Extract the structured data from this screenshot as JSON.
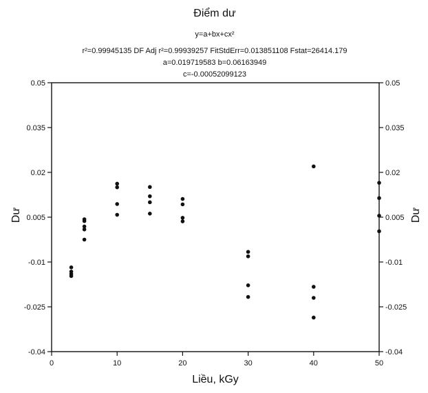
{
  "chart_data": {
    "type": "scatter",
    "title": "Điểm dư",
    "equation_lines": [
      "y=a+bx+cx²",
      "r²=0.99945135  DF Adj r²=0.99939257  FitStdErr=0.013851108  Fstat=26414.179",
      "a=0.019719583 b=0.06163949",
      "c=-0.00052099123"
    ],
    "xlabel": "Liều, kGy",
    "ylabel_left": "Dư",
    "ylabel_right": "Dư",
    "xlim": [
      0,
      50
    ],
    "ylim": [
      -0.04,
      0.05
    ],
    "x_ticks": [
      0,
      10,
      20,
      30,
      40,
      50
    ],
    "x_tick_labels": [
      "0",
      "10",
      "20",
      "30",
      "40",
      "50"
    ],
    "y_ticks": [
      0.05,
      0.035,
      0.02,
      0.005,
      -0.01,
      -0.025,
      -0.04
    ],
    "y_tick_labels_left": [
      "0.05",
      "0.035",
      "0.02",
      "0.005",
      "-0.01",
      "-0.025",
      "-0.04"
    ],
    "y_tick_labels_right": [
      "0.05",
      "0.035",
      "0.02",
      "0.005",
      "-0.01",
      "-0.025",
      "-0.04"
    ],
    "grid": false,
    "marker_color": "#111111",
    "series": [
      {
        "x": [
          3,
          3,
          3,
          3,
          5,
          5,
          5,
          5,
          5,
          10,
          10,
          10,
          10,
          15,
          15,
          15,
          15,
          20,
          20,
          20,
          20,
          30,
          30,
          30,
          30,
          40,
          40,
          40,
          40,
          50,
          50,
          50,
          50
        ],
        "y": [
          -0.0118,
          -0.0132,
          -0.014,
          -0.0147,
          0.0037,
          0.0019,
          0.0009,
          -0.0025,
          0.0043,
          0.0162,
          0.015,
          0.0094,
          0.0058,
          0.0151,
          0.012,
          0.01,
          0.0062,
          0.0111,
          0.0093,
          0.0048,
          0.0036,
          -0.0066,
          -0.0081,
          -0.0178,
          -0.0217,
          0.022,
          -0.0183,
          -0.022,
          -0.0286,
          0.0165,
          0.0114,
          0.0055,
          0.0003
        ]
      }
    ]
  }
}
